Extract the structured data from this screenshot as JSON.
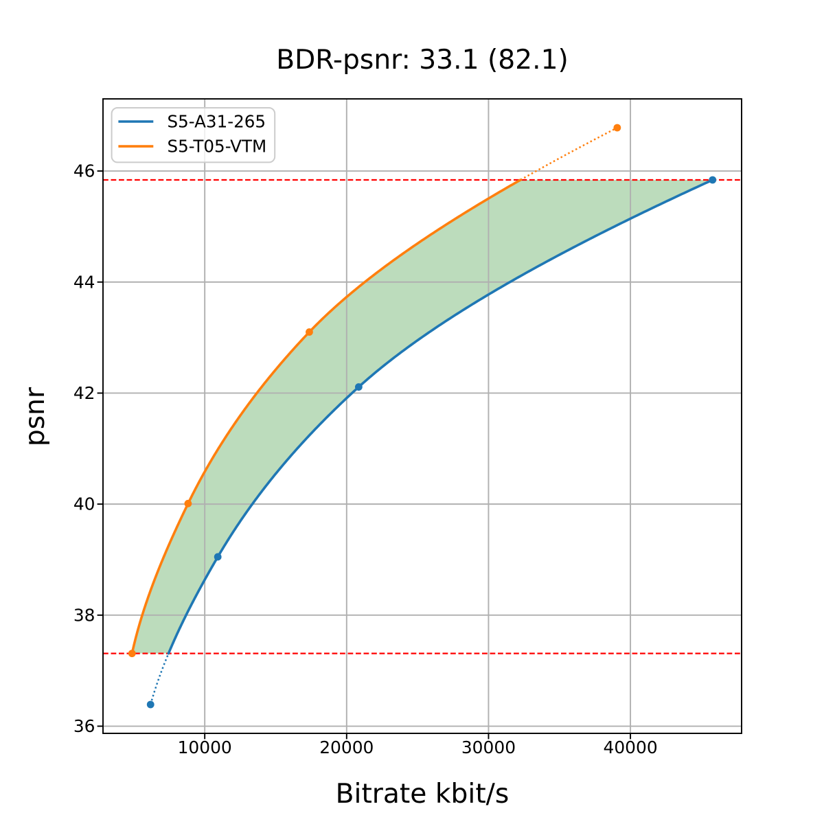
{
  "figure": {
    "title": "BDR-psnr: 33.1 (82.1)",
    "background_color": "#ffffff"
  },
  "chart_data": {
    "type": "line",
    "title": "BDR-psnr: 33.1 (82.1)",
    "xlabel": "Bitrate kbit/s",
    "ylabel": "psnr",
    "xlim": [
      2829.25,
      47835.75
    ],
    "ylim": [
      35.8705,
      47.2995
    ],
    "grid": true,
    "grid_color": "#b0b0b0",
    "legend_position": "upper left",
    "x_ticks": [
      10000,
      20000,
      30000,
      40000
    ],
    "x_tick_labels": [
      "10000",
      "20000",
      "30000",
      "40000"
    ],
    "y_ticks": [
      36,
      38,
      40,
      42,
      44,
      46
    ],
    "y_tick_labels": [
      "36",
      "38",
      "40",
      "42",
      "44",
      "46"
    ],
    "series": [
      {
        "name": "S5-A31-265",
        "color": "#1f77b4",
        "marker": "circle",
        "line_style": "solid inside overlap, dotted outside",
        "interpolation": "pchip",
        "points": [
          [
            6180,
            36.39
          ],
          [
            10920,
            39.05
          ],
          [
            20850,
            42.11
          ],
          [
            45790,
            45.84
          ]
        ]
      },
      {
        "name": "S5-T05-VTM",
        "color": "#ff7f0e",
        "marker": "circle",
        "line_style": "solid inside overlap, dotted outside",
        "interpolation": "pchip",
        "points": [
          [
            4875,
            37.31
          ],
          [
            8825,
            40.01
          ],
          [
            17370,
            43.1
          ],
          [
            39070,
            46.78
          ]
        ]
      }
    ],
    "overlap_interval": [
      37.31,
      45.84
    ],
    "hlines": [
      37.31,
      45.84
    ],
    "hline_color": "#ff0000",
    "hline_style": "dashed",
    "fill_between_color": "rgba(34,139,34,0.3)"
  }
}
